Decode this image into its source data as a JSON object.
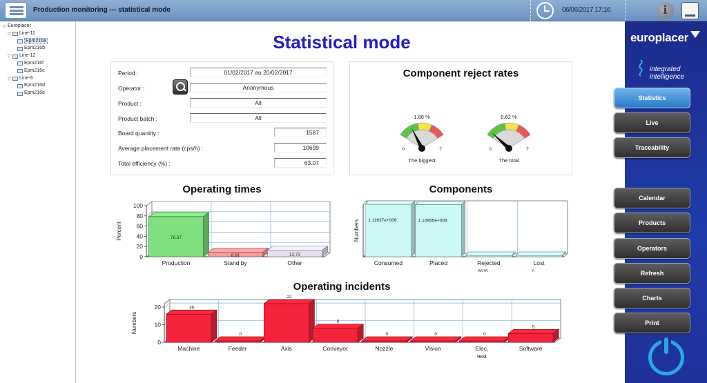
{
  "window": {
    "title": "Production monitoring --- statistical mode",
    "datetime": "06/06/2017 17:16"
  },
  "icons": {
    "menu": "list-menu-icon",
    "clock": "clock-icon",
    "info": "info-icon",
    "minimize": "minimize-icon",
    "power": "power-icon"
  },
  "tree": [
    {
      "label": "Europlacer",
      "level": 0,
      "expanded": true
    },
    {
      "label": "Line-11",
      "level": 1,
      "expanded": true
    },
    {
      "label": "Epm216a",
      "level": 2,
      "selected": true
    },
    {
      "label": "Epm216b",
      "level": 2
    },
    {
      "label": "Line-12",
      "level": 1,
      "expanded": true
    },
    {
      "label": "Epm216f",
      "level": 2
    },
    {
      "label": "Epm216c",
      "level": 2
    },
    {
      "label": "Line-9",
      "level": 1,
      "expanded": true
    },
    {
      "label": "Epm216d",
      "level": 2
    },
    {
      "label": "Epm216e",
      "level": 2
    }
  ],
  "page_title": "Statistical mode",
  "params": {
    "period_label": "Period :",
    "period_value": "01/02/2017  au  20/02/2017",
    "operator_label": "Operator :",
    "operator_value": "Anonymous",
    "product_label": "Product :",
    "product_value": "All",
    "batch_label": "Product batch :",
    "batch_value": "All",
    "board_qty_label": "Board quantity :",
    "board_qty_value": "1587",
    "placement_rate_label": "Average placement rate (cps/h) :",
    "placement_rate_value": "10699",
    "efficiency_label": "Total efficiency (%) :",
    "efficiency_value": "63.07"
  },
  "reject_rates": {
    "title": "Component reject rates",
    "gauges": [
      {
        "caption": "The biggest",
        "value_label": "1.88 %",
        "value": 1.88,
        "min": "0",
        "max": "7",
        "max_value": 7
      },
      {
        "caption": "The total",
        "value_label": "0.62 %",
        "value": 0.62,
        "min": "0",
        "max": "7",
        "max_value": 7
      }
    ],
    "zone_colors": {
      "green": "#5cc24a",
      "yellow": "#f2e34a",
      "red": "#e85a5a",
      "face": "#d9d9d9"
    }
  },
  "sidebar": {
    "logo": "europlacer",
    "tagline_1": "integrated",
    "tagline_2": "intelligence",
    "buttons": [
      {
        "label": "Statistics",
        "active": true
      },
      {
        "label": "Live"
      },
      {
        "label": "Traceability"
      },
      {
        "label": "Calendar"
      },
      {
        "label": "Products"
      },
      {
        "label": "Operators"
      },
      {
        "label": "Refresh"
      },
      {
        "label": "Charts"
      },
      {
        "label": "Print"
      }
    ]
  },
  "chart_data": [
    {
      "type": "bar",
      "title": "Operating times",
      "ylabel": "Percent",
      "categories": [
        "Production",
        "Stand by",
        "Other"
      ],
      "values": [
        78.67,
        8.61,
        12.72
      ],
      "value_labels": [
        "78.67",
        "8.61",
        "12.72"
      ],
      "colors": [
        "#7fe07f",
        "#f59a9a",
        "#e6e0ee"
      ],
      "ylim": [
        0,
        100
      ],
      "yticks": [
        "0",
        "20",
        "40",
        "60",
        "80",
        "100"
      ],
      "grid": true
    },
    {
      "type": "bar",
      "title": "Components",
      "ylabel": "Numbers",
      "categories": [
        "Consumed",
        "Placed",
        "Rejected",
        "Lost"
      ],
      "values": [
        1116370,
        1109550,
        6635,
        0
      ],
      "value_labels": [
        "1.11637e+006",
        "1.10955e+006",
        "6635",
        "0"
      ],
      "color": "#ccf7f7",
      "ylim": [
        0,
        1116370
      ],
      "grid": true
    },
    {
      "type": "bar",
      "title": "Operating incidents",
      "ylabel": "Numbers",
      "categories": [
        "Machine",
        "Feeder",
        "Axis",
        "Conveyor",
        "Nozzle",
        "Vision",
        "Elec. test",
        "Software"
      ],
      "values": [
        16,
        0,
        22,
        8,
        0,
        0,
        0,
        5
      ],
      "value_labels": [
        "16",
        "0",
        "22",
        "8",
        "0",
        "0",
        "0",
        "5"
      ],
      "color": "#f5243c",
      "ylim": [
        0,
        22
      ],
      "yticks": [
        "0",
        "10",
        "20"
      ],
      "grid": true
    }
  ]
}
